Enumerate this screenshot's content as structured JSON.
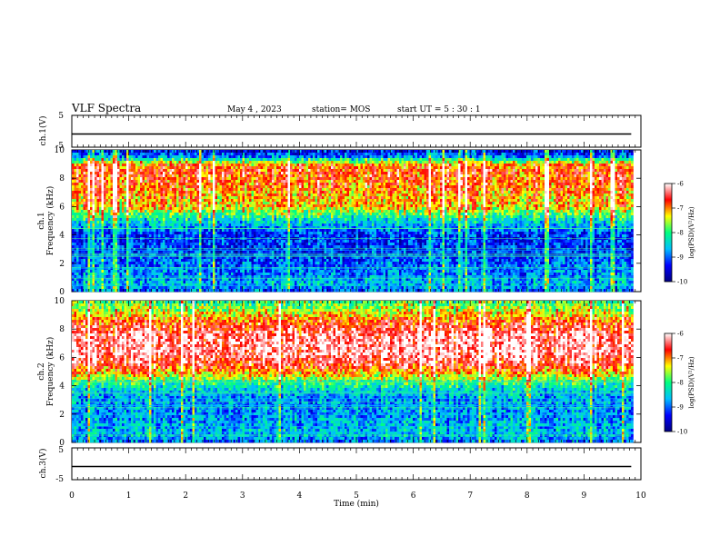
{
  "header": {
    "title": "VLF Spectra",
    "date": "May 4 , 2023",
    "station": "station= MOS",
    "start": "start UT =  5 : 30 : 1"
  },
  "chart_data": [
    {
      "type": "line",
      "panel": "ch1-waveform",
      "ylabel": "ch.1(V)",
      "ylim": [
        -5,
        5
      ],
      "yticks": [
        "5",
        "-5"
      ],
      "xlim": [
        0,
        10
      ],
      "series": [
        {
          "x": [
            0,
            9.83
          ],
          "y": [
            0,
            0
          ]
        }
      ]
    },
    {
      "type": "heatmap",
      "panel": "ch1-spectrogram",
      "ylabel_line1": "ch.1",
      "ylabel_line2": "Frequency (kHz)",
      "ylim": [
        0,
        10
      ],
      "yticks": [
        "0",
        "2",
        "4",
        "6",
        "8",
        "10"
      ],
      "xlim": [
        0,
        10
      ],
      "data_xmax": 9.83,
      "intensity_by_freq_kHz": {
        "freq": [
          0,
          0.5,
          1,
          2,
          3,
          4,
          4.5,
          5,
          5.5,
          6,
          6.5,
          7,
          7.5,
          8,
          8.5,
          9,
          9.5,
          10
        ],
        "level": [
          0.25,
          0.35,
          0.3,
          0.25,
          0.2,
          0.2,
          0.3,
          0.4,
          0.55,
          0.7,
          0.72,
          0.75,
          0.78,
          0.8,
          0.82,
          0.75,
          0.3,
          0.15
        ]
      },
      "colorbar": {
        "label": "log(PSD)(V²/Hz)",
        "min": -10,
        "max": -6,
        "ticks": [
          "-6",
          "-7",
          "-8",
          "-9",
          "-10"
        ]
      }
    },
    {
      "type": "heatmap",
      "panel": "ch2-spectrogram",
      "ylabel_line1": "ch.2",
      "ylabel_line2": "Frequency (kHz)",
      "ylim": [
        0,
        10
      ],
      "yticks": [
        "0",
        "2",
        "4",
        "6",
        "8",
        "10"
      ],
      "xlim": [
        0,
        10
      ],
      "data_xmax": 9.83,
      "intensity_by_freq_kHz": {
        "freq": [
          0,
          0.5,
          1,
          2,
          3,
          3.5,
          4,
          4.5,
          5,
          5.5,
          6,
          6.5,
          7,
          7.5,
          8,
          8.5,
          9,
          9.5,
          10
        ],
        "level": [
          0.25,
          0.35,
          0.35,
          0.3,
          0.3,
          0.35,
          0.45,
          0.6,
          0.75,
          0.85,
          0.92,
          0.95,
          0.95,
          0.93,
          0.88,
          0.8,
          0.7,
          0.6,
          0.5
        ]
      },
      "colorbar": {
        "label": "log(PSD)(V²/Hz)",
        "min": -10,
        "max": -6,
        "ticks": [
          "-6",
          "-7",
          "-8",
          "-9",
          "-10"
        ]
      }
    },
    {
      "type": "line",
      "panel": "ch3-waveform",
      "ylabel": "ch.3(V)",
      "ylim": [
        -5,
        5
      ],
      "yticks": [
        "5",
        "-5"
      ],
      "xlim": [
        0,
        10
      ],
      "xticks": [
        "0",
        "1",
        "2",
        "3",
        "4",
        "5",
        "6",
        "7",
        "8",
        "9",
        "10"
      ],
      "xlabel": "Time (min)",
      "series": [
        {
          "x": [
            0,
            9.83
          ],
          "y": [
            0,
            0
          ]
        }
      ]
    }
  ],
  "colors": {
    "colormap": [
      "#000080",
      "#0000ff",
      "#00c0ff",
      "#00ff80",
      "#ffff00",
      "#ff0000",
      "#ffffff"
    ]
  }
}
